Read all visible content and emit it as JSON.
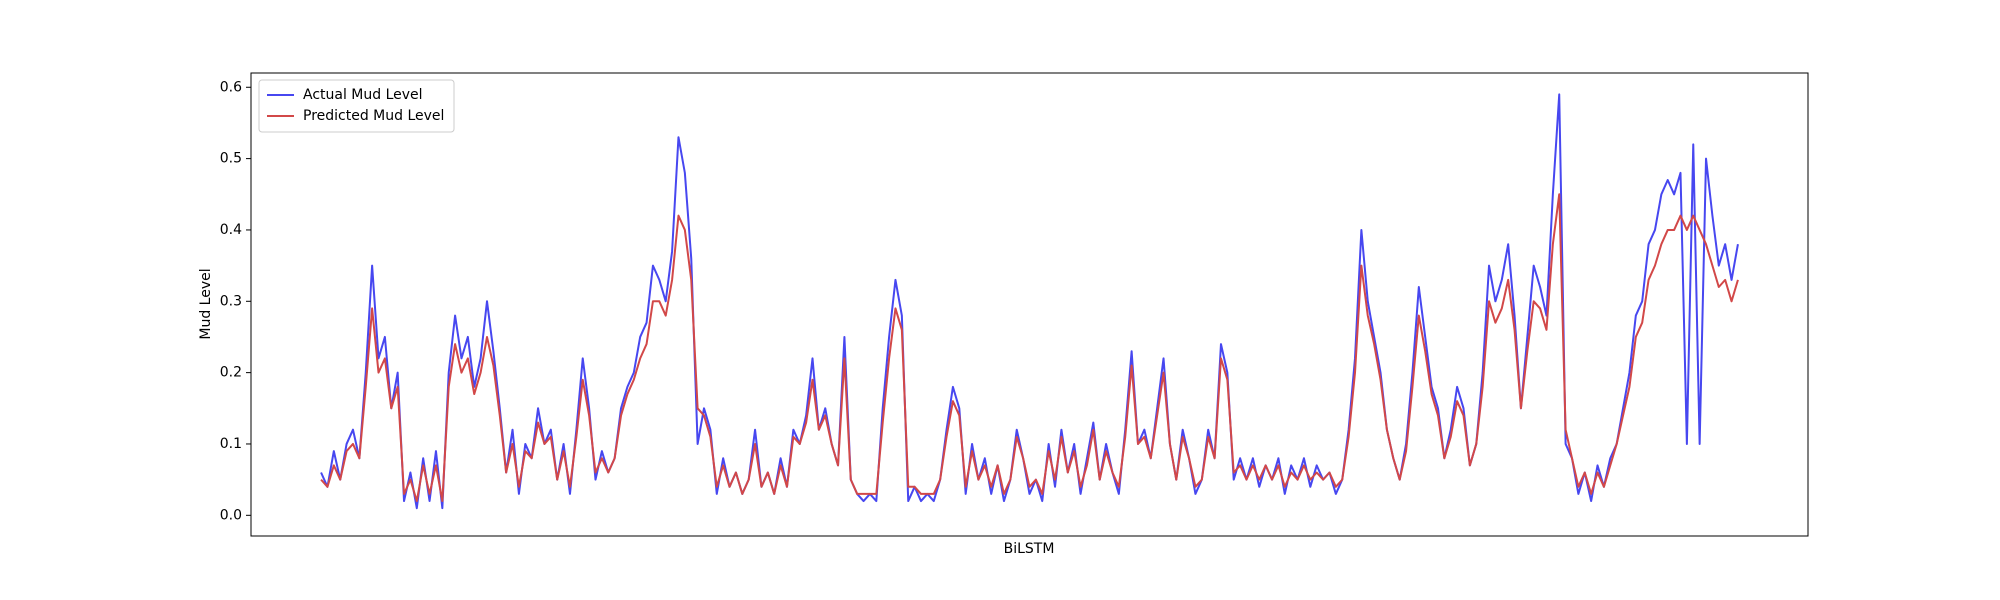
{
  "chart_data": {
    "type": "line",
    "xlabel": "BiLSTM",
    "ylabel": "Mud Level",
    "ylim": [
      -0.029,
      0.62
    ],
    "yticks": [
      {
        "value": 0,
        "label": "0.0"
      },
      0.1,
      0.2,
      0.3,
      0.4,
      0.5,
      0.6
    ],
    "legend": "upper left",
    "series": [
      {
        "name": "Actual Mud Level",
        "color": "#4747f0",
        "values": [
          0.06,
          0.04,
          0.09,
          0.05,
          0.1,
          0.12,
          0.08,
          0.2,
          0.35,
          0.22,
          0.25,
          0.15,
          0.2,
          0.02,
          0.06,
          0.01,
          0.08,
          0.02,
          0.09,
          0.01,
          0.2,
          0.28,
          0.22,
          0.25,
          0.18,
          0.22,
          0.3,
          0.23,
          0.15,
          0.06,
          0.12,
          0.03,
          0.1,
          0.08,
          0.15,
          0.1,
          0.12,
          0.05,
          0.1,
          0.03,
          0.12,
          0.22,
          0.15,
          0.05,
          0.09,
          0.06,
          0.08,
          0.15,
          0.18,
          0.2,
          0.25,
          0.27,
          0.35,
          0.33,
          0.3,
          0.37,
          0.53,
          0.48,
          0.36,
          0.1,
          0.15,
          0.12,
          0.03,
          0.08,
          0.04,
          0.06,
          0.03,
          0.05,
          0.12,
          0.04,
          0.06,
          0.03,
          0.08,
          0.04,
          0.12,
          0.1,
          0.14,
          0.22,
          0.12,
          0.15,
          0.1,
          0.07,
          0.25,
          0.05,
          0.03,
          0.02,
          0.03,
          0.02,
          0.15,
          0.25,
          0.33,
          0.28,
          0.02,
          0.04,
          0.02,
          0.03,
          0.02,
          0.05,
          0.12,
          0.18,
          0.15,
          0.03,
          0.1,
          0.05,
          0.08,
          0.03,
          0.07,
          0.02,
          0.05,
          0.12,
          0.08,
          0.03,
          0.05,
          0.02,
          0.1,
          0.04,
          0.12,
          0.06,
          0.1,
          0.03,
          0.08,
          0.13,
          0.05,
          0.1,
          0.06,
          0.03,
          0.12,
          0.23,
          0.1,
          0.12,
          0.08,
          0.15,
          0.22,
          0.1,
          0.05,
          0.12,
          0.08,
          0.03,
          0.05,
          0.12,
          0.08,
          0.24,
          0.2,
          0.05,
          0.08,
          0.05,
          0.08,
          0.04,
          0.07,
          0.05,
          0.08,
          0.03,
          0.07,
          0.05,
          0.08,
          0.04,
          0.07,
          0.05,
          0.06,
          0.03,
          0.05,
          0.12,
          0.22,
          0.4,
          0.3,
          0.25,
          0.2,
          0.12,
          0.08,
          0.05,
          0.1,
          0.2,
          0.32,
          0.25,
          0.18,
          0.15,
          0.08,
          0.12,
          0.18,
          0.15,
          0.07,
          0.1,
          0.2,
          0.35,
          0.3,
          0.33,
          0.38,
          0.28,
          0.15,
          0.25,
          0.35,
          0.32,
          0.28,
          0.45,
          0.59,
          0.1,
          0.08,
          0.03,
          0.06,
          0.02,
          0.07,
          0.04,
          0.08,
          0.1,
          0.15,
          0.2,
          0.28,
          0.3,
          0.38,
          0.4,
          0.45,
          0.47,
          0.45,
          0.48,
          0.1,
          0.52,
          0.1,
          0.5,
          0.42,
          0.35,
          0.38,
          0.33,
          0.38
        ]
      },
      {
        "name": "Predicted Mud Level",
        "color": "#d24848",
        "values": [
          0.05,
          0.04,
          0.07,
          0.05,
          0.09,
          0.1,
          0.08,
          0.18,
          0.29,
          0.2,
          0.22,
          0.15,
          0.18,
          0.03,
          0.05,
          0.02,
          0.07,
          0.03,
          0.07,
          0.02,
          0.18,
          0.24,
          0.2,
          0.22,
          0.17,
          0.2,
          0.25,
          0.21,
          0.14,
          0.06,
          0.1,
          0.04,
          0.09,
          0.08,
          0.13,
          0.1,
          0.11,
          0.05,
          0.09,
          0.04,
          0.11,
          0.19,
          0.14,
          0.06,
          0.08,
          0.06,
          0.08,
          0.14,
          0.17,
          0.19,
          0.22,
          0.24,
          0.3,
          0.3,
          0.28,
          0.33,
          0.42,
          0.4,
          0.33,
          0.15,
          0.14,
          0.11,
          0.04,
          0.07,
          0.04,
          0.06,
          0.03,
          0.05,
          0.1,
          0.04,
          0.06,
          0.03,
          0.07,
          0.04,
          0.11,
          0.1,
          0.13,
          0.19,
          0.12,
          0.14,
          0.1,
          0.07,
          0.22,
          0.05,
          0.03,
          0.03,
          0.03,
          0.03,
          0.13,
          0.22,
          0.29,
          0.26,
          0.04,
          0.04,
          0.03,
          0.03,
          0.03,
          0.05,
          0.11,
          0.16,
          0.14,
          0.04,
          0.09,
          0.05,
          0.07,
          0.04,
          0.07,
          0.03,
          0.05,
          0.11,
          0.08,
          0.04,
          0.05,
          0.03,
          0.09,
          0.05,
          0.11,
          0.06,
          0.09,
          0.04,
          0.07,
          0.12,
          0.05,
          0.09,
          0.06,
          0.04,
          0.11,
          0.21,
          0.1,
          0.11,
          0.08,
          0.14,
          0.2,
          0.1,
          0.05,
          0.11,
          0.08,
          0.04,
          0.05,
          0.11,
          0.08,
          0.22,
          0.19,
          0.06,
          0.07,
          0.05,
          0.07,
          0.05,
          0.07,
          0.05,
          0.07,
          0.04,
          0.06,
          0.05,
          0.07,
          0.05,
          0.06,
          0.05,
          0.06,
          0.04,
          0.05,
          0.11,
          0.2,
          0.35,
          0.28,
          0.24,
          0.19,
          0.12,
          0.08,
          0.05,
          0.09,
          0.18,
          0.28,
          0.23,
          0.17,
          0.14,
          0.08,
          0.11,
          0.16,
          0.14,
          0.07,
          0.1,
          0.18,
          0.3,
          0.27,
          0.29,
          0.33,
          0.26,
          0.15,
          0.23,
          0.3,
          0.29,
          0.26,
          0.38,
          0.45,
          0.12,
          0.08,
          0.04,
          0.06,
          0.03,
          0.06,
          0.04,
          0.07,
          0.1,
          0.14,
          0.18,
          0.25,
          0.27,
          0.33,
          0.35,
          0.38,
          0.4,
          0.4,
          0.42,
          0.4,
          0.42,
          0.4,
          0.38,
          0.35,
          0.32,
          0.33,
          0.3,
          0.33
        ]
      }
    ]
  }
}
